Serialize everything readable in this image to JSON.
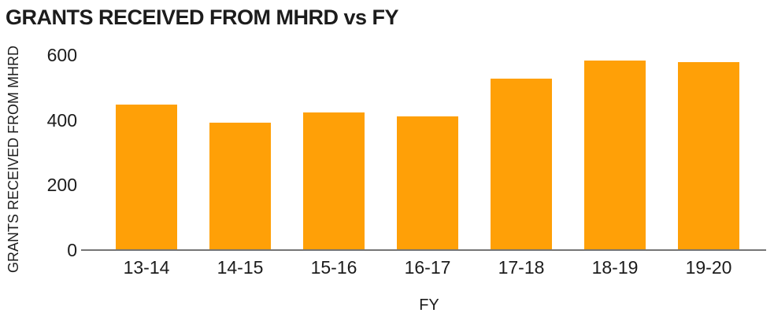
{
  "chart_data": {
    "type": "bar",
    "title": "GRANTS RECEIVED FROM MHRD vs FY",
    "xlabel": "FY",
    "ylabel": "GRANTS RECEIVED FROM MHRD",
    "categories": [
      "13-14",
      "14-15",
      "15-16",
      "16-17",
      "17-18",
      "18-19",
      "19-20"
    ],
    "values": [
      445,
      390,
      420,
      410,
      525,
      580,
      575
    ],
    "ylim": [
      0,
      600
    ],
    "yticks": [
      0,
      200,
      400,
      600
    ],
    "grid": false,
    "legend": false,
    "colors": {
      "bar": "#ffa007",
      "axis_line": "#757575",
      "text": "#1c1c1c",
      "background": "#ffffff"
    }
  }
}
